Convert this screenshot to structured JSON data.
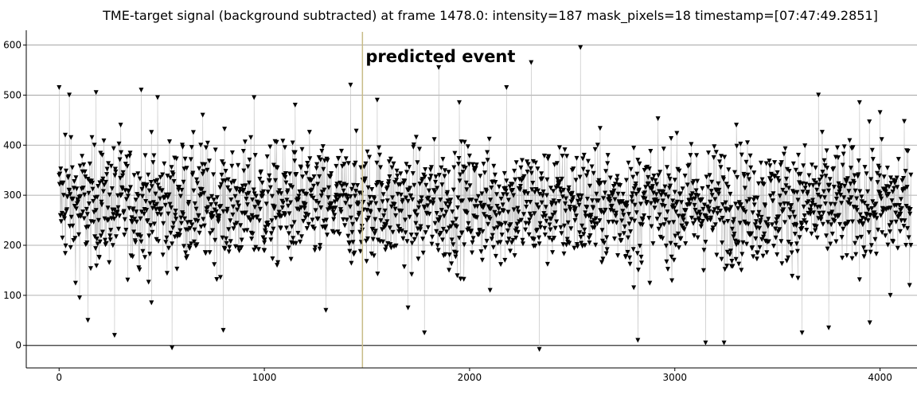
{
  "chart_data": {
    "type": "scatter",
    "title": "TME-target signal (background subtracted) at frame 1478.0: intensity=187 mask_pixels=18 timestamp=[07:47:49.2851]",
    "xlabel": "",
    "ylabel": "",
    "xlim": [
      -160,
      4180
    ],
    "ylim": [
      -45,
      620
    ],
    "x_ticks": [
      0,
      1000,
      2000,
      3000,
      4000
    ],
    "y_ticks": [
      0,
      100,
      200,
      300,
      400,
      500,
      600
    ],
    "grid": true,
    "marker": "triangle-down",
    "connected_by_lines": true,
    "point_count": 4150,
    "x_step": 1,
    "y_mean": 280,
    "y_min": -10,
    "y_max": 595,
    "sampled_points": [
      [
        0,
        515
      ],
      [
        30,
        420
      ],
      [
        50,
        500
      ],
      [
        100,
        95
      ],
      [
        140,
        50
      ],
      [
        180,
        505
      ],
      [
        210,
        380
      ],
      [
        270,
        20
      ],
      [
        300,
        440
      ],
      [
        400,
        510
      ],
      [
        450,
        85
      ],
      [
        480,
        495
      ],
      [
        550,
        -5
      ],
      [
        600,
        400
      ],
      [
        700,
        460
      ],
      [
        800,
        30
      ],
      [
        900,
        310
      ],
      [
        950,
        495
      ],
      [
        1000,
        205
      ],
      [
        1100,
        395
      ],
      [
        1150,
        480
      ],
      [
        1200,
        255
      ],
      [
        1300,
        70
      ],
      [
        1350,
        300
      ],
      [
        1420,
        520
      ],
      [
        1500,
        270
      ],
      [
        1550,
        490
      ],
      [
        1600,
        315
      ],
      [
        1700,
        75
      ],
      [
        1780,
        25
      ],
      [
        1850,
        555
      ],
      [
        1900,
        150
      ],
      [
        1950,
        485
      ],
      [
        2000,
        290
      ],
      [
        2100,
        110
      ],
      [
        2180,
        515
      ],
      [
        2300,
        565
      ],
      [
        2340,
        -8
      ],
      [
        2400,
        285
      ],
      [
        2500,
        350
      ],
      [
        2540,
        595
      ],
      [
        2600,
        235
      ],
      [
        2700,
        305
      ],
      [
        2800,
        115
      ],
      [
        2820,
        10
      ],
      [
        2900,
        290
      ],
      [
        3000,
        330
      ],
      [
        3100,
        250
      ],
      [
        3150,
        5
      ],
      [
        3200,
        310
      ],
      [
        3240,
        5
      ],
      [
        3300,
        440
      ],
      [
        3400,
        185
      ],
      [
        3500,
        345
      ],
      [
        3600,
        290
      ],
      [
        3620,
        25
      ],
      [
        3700,
        500
      ],
      [
        3750,
        35
      ],
      [
        3800,
        315
      ],
      [
        3900,
        485
      ],
      [
        3950,
        45
      ],
      [
        4000,
        465
      ],
      [
        4050,
        100
      ],
      [
        4100,
        270
      ],
      [
        4150,
        200
      ]
    ],
    "annotations": [
      {
        "label": "predicted event",
        "x": 1478
      }
    ],
    "colors": {
      "marker": "#000000",
      "connector_line": "#c0c0c0",
      "grid": "#999999",
      "zero_line": "#333333",
      "event_line": "#c8bb88",
      "frame": "#000000"
    }
  }
}
